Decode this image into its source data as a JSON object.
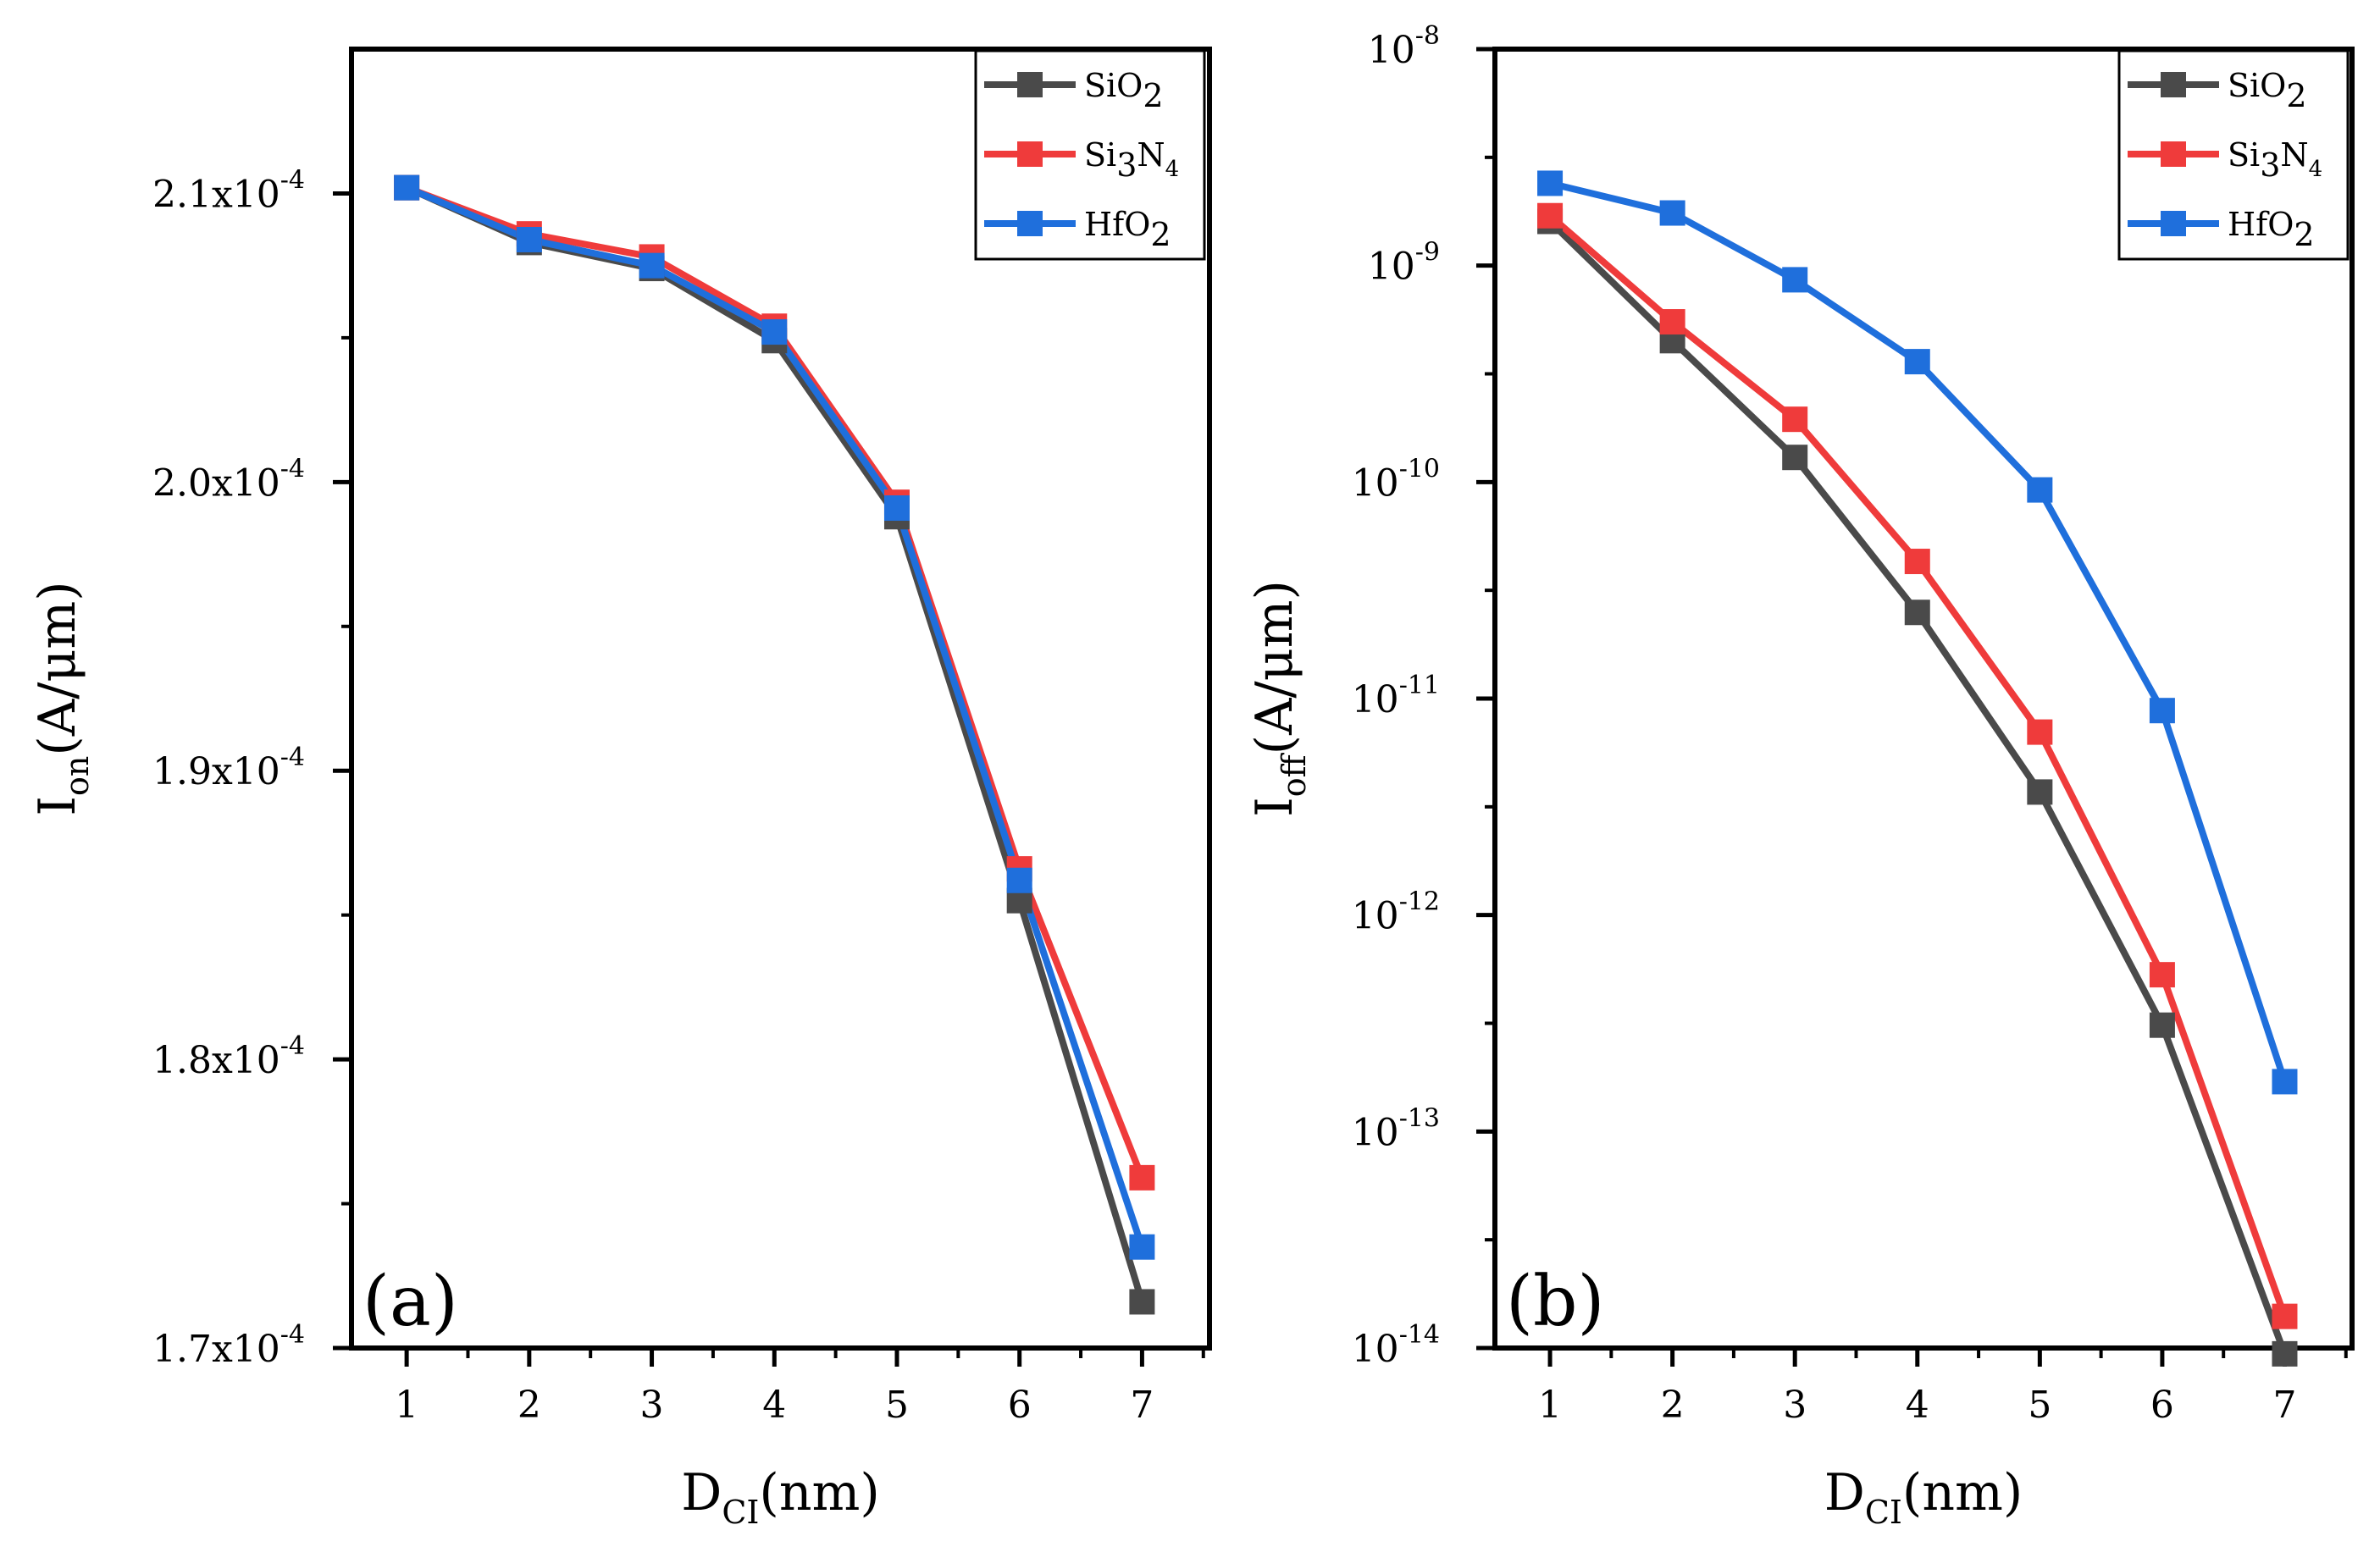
{
  "chart_data": [
    {
      "type": "line",
      "panel_label": "(a)",
      "scale": "linear",
      "x": [
        1,
        2,
        3,
        4,
        5,
        6,
        7
      ],
      "xlim": [
        0.55,
        7.55
      ],
      "ylim": [
        0.00017,
        0.000215
      ],
      "xlabel": {
        "base": "D",
        "sub": "CI",
        "rest": "(nm)"
      },
      "ylabel": {
        "base": "I",
        "sub": "on",
        "rest": "(A/μm)"
      },
      "xticks": [
        {
          "v": 1,
          "label": "1"
        },
        {
          "v": 2,
          "label": "2"
        },
        {
          "v": 3,
          "label": "3"
        },
        {
          "v": 4,
          "label": "4"
        },
        {
          "v": 5,
          "label": "5"
        },
        {
          "v": 6,
          "label": "6"
        },
        {
          "v": 7,
          "label": "7"
        }
      ],
      "yticks": [
        {
          "v": 0.00017,
          "mant": "1.7x10",
          "exp": "-4"
        },
        {
          "v": 0.00018,
          "mant": "1.8x10",
          "exp": "-4"
        },
        {
          "v": 0.00019,
          "mant": "1.9x10",
          "exp": "-4"
        },
        {
          "v": 0.0002,
          "mant": "2.0x10",
          "exp": "-4"
        },
        {
          "v": 0.00021,
          "mant": "2.1x10",
          "exp": "-4"
        }
      ],
      "yminor": [
        0.000175,
        0.000185,
        0.000195,
        0.000205
      ],
      "xminor": [],
      "legend_position": "top-right",
      "series": [
        {
          "name_base": "SiO",
          "name_sub": "2",
          "name_rest": "",
          "color": "#4a4a4a",
          "values": [
            0.0002102,
            0.0002083,
            0.0002074,
            0.0002049,
            0.0001988,
            0.0001855,
            0.0001716
          ]
        },
        {
          "name_base": "Si",
          "name_sub": "3",
          "name_rest": "N",
          "name_sub2": "4",
          "color": "#ef3b3b",
          "values": [
            0.0002102,
            0.0002086,
            0.0002078,
            0.0002054,
            0.0001993,
            0.0001866,
            0.0001759
          ]
        },
        {
          "name_base": "HfO",
          "name_sub": "2",
          "name_rest": "",
          "color": "#1f6fdc",
          "values": [
            0.0002102,
            0.0002084,
            0.0002075,
            0.0002052,
            0.0001991,
            0.0001862,
            0.0001735
          ]
        }
      ]
    },
    {
      "type": "line",
      "panel_label": "(b)",
      "scale": "log",
      "x": [
        1,
        2,
        3,
        4,
        5,
        6,
        7
      ],
      "xlim": [
        0.55,
        7.55
      ],
      "ylim": [
        1e-14,
        1e-08
      ],
      "xlabel": {
        "base": "D",
        "sub": "CI",
        "rest": "(nm)"
      },
      "ylabel": {
        "base": "I",
        "sub": "off",
        "rest": "(A/μm)"
      },
      "xticks": [
        {
          "v": 1,
          "label": "1"
        },
        {
          "v": 2,
          "label": "2"
        },
        {
          "v": 3,
          "label": "3"
        },
        {
          "v": 4,
          "label": "4"
        },
        {
          "v": 5,
          "label": "5"
        },
        {
          "v": 6,
          "label": "6"
        },
        {
          "v": 7,
          "label": "7"
        }
      ],
      "yticks": [
        {
          "v": 1e-14,
          "mant": "10",
          "exp": "-14"
        },
        {
          "v": 1e-13,
          "mant": "10",
          "exp": "-13"
        },
        {
          "v": 1e-12,
          "mant": "10",
          "exp": "-12"
        },
        {
          "v": 1e-11,
          "mant": "10",
          "exp": "-11"
        },
        {
          "v": 1e-10,
          "mant": "10",
          "exp": "-10"
        },
        {
          "v": 1e-09,
          "mant": "10",
          "exp": "-9"
        },
        {
          "v": 1e-08,
          "mant": "10",
          "exp": "-8"
        }
      ],
      "yminor": [],
      "legend_position": "top-right",
      "series": [
        {
          "name_base": "SiO",
          "name_sub": "2",
          "name_rest": "",
          "color": "#4a4a4a",
          "values": [
            1.6e-09,
            4.5e-10,
            1.3e-10,
            2.5e-11,
            3.7e-12,
            3.1e-13,
            9.4e-15
          ]
        },
        {
          "name_base": "Si",
          "name_sub": "3",
          "name_rest": "N",
          "name_sub2": "4",
          "color": "#ef3b3b",
          "values": [
            1.7e-09,
            5.5e-10,
            1.95e-10,
            4.3e-11,
            7e-12,
            5.3e-13,
            1.4e-14
          ]
        },
        {
          "name_base": "HfO",
          "name_sub": "2",
          "name_rest": "",
          "color": "#1f6fdc",
          "values": [
            2.4e-09,
            1.75e-09,
            8.6e-10,
            3.6e-10,
            9.2e-11,
            8.8e-12,
            1.7e-13
          ]
        }
      ]
    }
  ]
}
